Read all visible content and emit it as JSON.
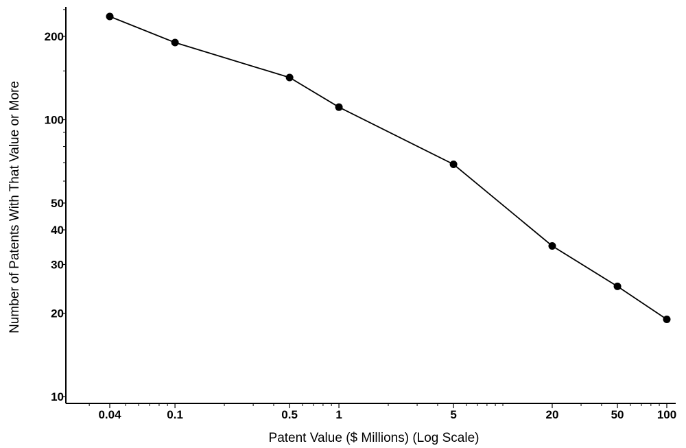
{
  "chart_data": {
    "type": "line",
    "title": "",
    "xlabel": "Patent Value ($ Millions) (Log Scale)",
    "ylabel": "Number of Patents With That Value or More",
    "x_scale": "log",
    "y_scale": "log",
    "xlim": [
      0.025,
      110
    ],
    "ylim": [
      10,
      260
    ],
    "x_ticks": [
      0.04,
      0.1,
      0.5,
      1,
      5,
      20,
      50,
      100
    ],
    "x_tick_labels": [
      "0.04",
      "0.1",
      "0.5",
      "1",
      "5",
      "20",
      "50",
      "100"
    ],
    "y_ticks": [
      10,
      20,
      30,
      40,
      50,
      100,
      200
    ],
    "y_tick_labels": [
      "10",
      "20",
      "30",
      "40",
      "50",
      "100",
      "200"
    ],
    "grid": false,
    "series": [
      {
        "x": [
          0.04,
          0.1,
          0.5,
          1,
          5,
          20,
          50,
          100
        ],
        "y": [
          236,
          190,
          142,
          111,
          69,
          35,
          25,
          19
        ]
      }
    ]
  }
}
